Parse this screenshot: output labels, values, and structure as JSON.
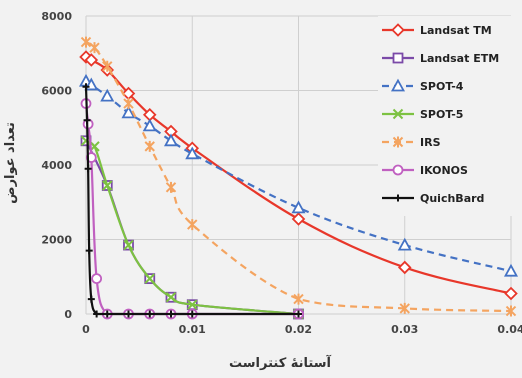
{
  "chart_data": {
    "type": "line",
    "xlabel": "آستانهٔ کنتراست",
    "ylabel": "تعداد عوارض",
    "xlim": [
      0,
      0.04
    ],
    "ylim": [
      0,
      8000
    ],
    "x_ticks": [
      {
        "value": 0,
        "label": "0"
      },
      {
        "value": 0.01,
        "label": "0.01"
      },
      {
        "value": 0.02,
        "label": "0.02"
      },
      {
        "value": 0.03,
        "label": "0.03"
      },
      {
        "value": 0.04,
        "label": "0.04"
      }
    ],
    "y_ticks": [
      {
        "value": 0,
        "label": "0"
      },
      {
        "value": 2000,
        "label": "2000"
      },
      {
        "value": 4000,
        "label": "4000"
      },
      {
        "value": 6000,
        "label": "6000"
      },
      {
        "value": 8000,
        "label": "8000"
      }
    ],
    "grid": true,
    "legend_position": "top-right",
    "series": [
      {
        "name": "Landsat TM",
        "color": "#e8372a",
        "marker": "diamond",
        "dash": "solid",
        "x": [
          0,
          0.0005,
          0.002,
          0.004,
          0.006,
          0.008,
          0.01,
          0.02,
          0.03,
          0.04
        ],
        "y": [
          6900,
          6820,
          6550,
          5920,
          5350,
          4900,
          4450,
          2550,
          1250,
          550
        ]
      },
      {
        "name": "Landsat ETM",
        "color": "#7b4aa8",
        "marker": "square",
        "dash": "solid",
        "x": [
          0,
          0.002,
          0.004,
          0.006,
          0.008,
          0.01,
          0.02
        ],
        "y": [
          4650,
          3450,
          1850,
          950,
          450,
          250,
          0
        ]
      },
      {
        "name": "SPOT-4",
        "color": "#4472c4",
        "marker": "triangle",
        "dash": "dashed",
        "x": [
          0,
          0.0005,
          0.002,
          0.004,
          0.006,
          0.008,
          0.01,
          0.02,
          0.03,
          0.04
        ],
        "y": [
          6250,
          6150,
          5850,
          5400,
          5050,
          4650,
          4300,
          2850,
          1850,
          1150
        ]
      },
      {
        "name": "SPOT-5",
        "color": "#7dc242",
        "marker": "x",
        "dash": "solid",
        "x": [
          0,
          0.0008,
          0.002,
          0.004,
          0.006,
          0.008,
          0.01,
          0.02
        ],
        "y": [
          4650,
          4500,
          3450,
          1850,
          950,
          450,
          250,
          0
        ]
      },
      {
        "name": "IRS",
        "color": "#f4a460",
        "marker": "asterisk",
        "dash": "dashed",
        "x": [
          0,
          0.0008,
          0.002,
          0.004,
          0.006,
          0.008,
          0.01,
          0.02,
          0.03,
          0.04
        ],
        "y": [
          7300,
          7150,
          6650,
          5650,
          4500,
          3400,
          2400,
          400,
          150,
          80
        ]
      },
      {
        "name": "IKONOS",
        "color": "#c060c0",
        "marker": "circle",
        "dash": "solid",
        "x": [
          0,
          0.0002,
          0.0005,
          0.001,
          0.002,
          0.004,
          0.006,
          0.008,
          0.01,
          0.02
        ],
        "y": [
          5650,
          5100,
          4200,
          950,
          0,
          0,
          0,
          0,
          0,
          0
        ]
      },
      {
        "name": "QuichBard",
        "color": "#111111",
        "marker": "plus",
        "dash": "solid",
        "x": [
          0,
          0.0001,
          0.0002,
          0.0003,
          0.0005,
          0.001,
          0.002,
          0.004,
          0.006,
          0.008,
          0.01,
          0.02
        ],
        "y": [
          6100,
          5200,
          3900,
          1700,
          400,
          0,
          0,
          0,
          0,
          0,
          0,
          0
        ]
      }
    ]
  }
}
